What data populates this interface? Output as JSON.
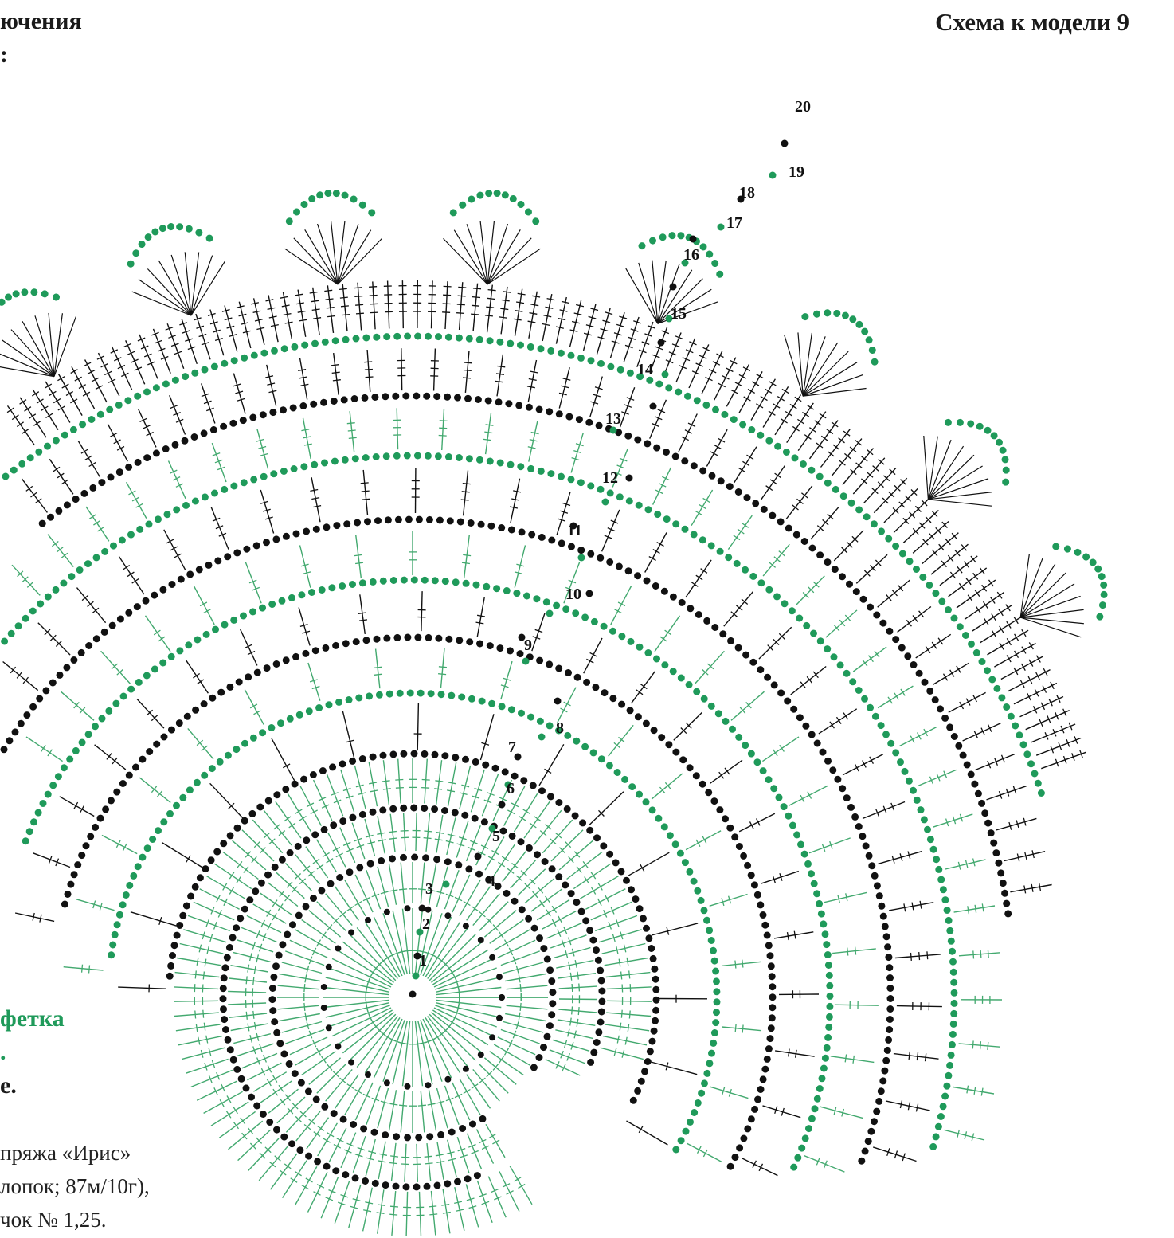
{
  "header": {
    "title": "Схема к модели 9",
    "legend_fragment_1": "ючения",
    "legend_fragment_2": ":"
  },
  "side_text": {
    "green_line_1": "фетка",
    "green_line_2": ".",
    "line_3": "е."
  },
  "materials_text": [
    "пряжа      «Ирис»",
    "лопок; 87м/10г),",
    "чок № 1,25."
  ],
  "colors": {
    "green": "#1f9a5a",
    "black": "#111111",
    "light_green": "#43a96f"
  },
  "diagram": {
    "type": "crochet-doily-chart",
    "row_labels": [
      "1",
      "2",
      "3",
      "4",
      "5",
      "6",
      "7",
      "8",
      "9",
      "10",
      "11",
      "12",
      "13",
      "14",
      "15",
      "16",
      "17",
      "18",
      "19",
      "20"
    ]
  }
}
